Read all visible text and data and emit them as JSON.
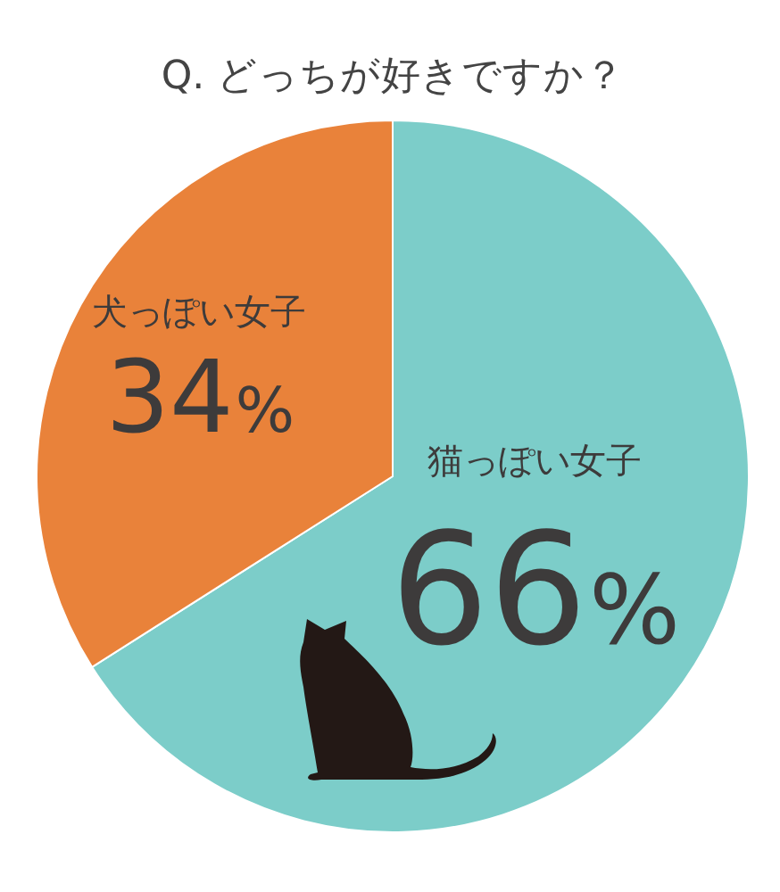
{
  "chart_data": {
    "type": "pie",
    "title": "Q. どっちが好きですか？",
    "categories": [
      "猫っぽい女子",
      "犬っぽい女子"
    ],
    "values": [
      66,
      34
    ],
    "colors": [
      "#7ccdc9",
      "#e9823a"
    ],
    "value_labels": [
      "66%",
      "34%"
    ]
  }
}
